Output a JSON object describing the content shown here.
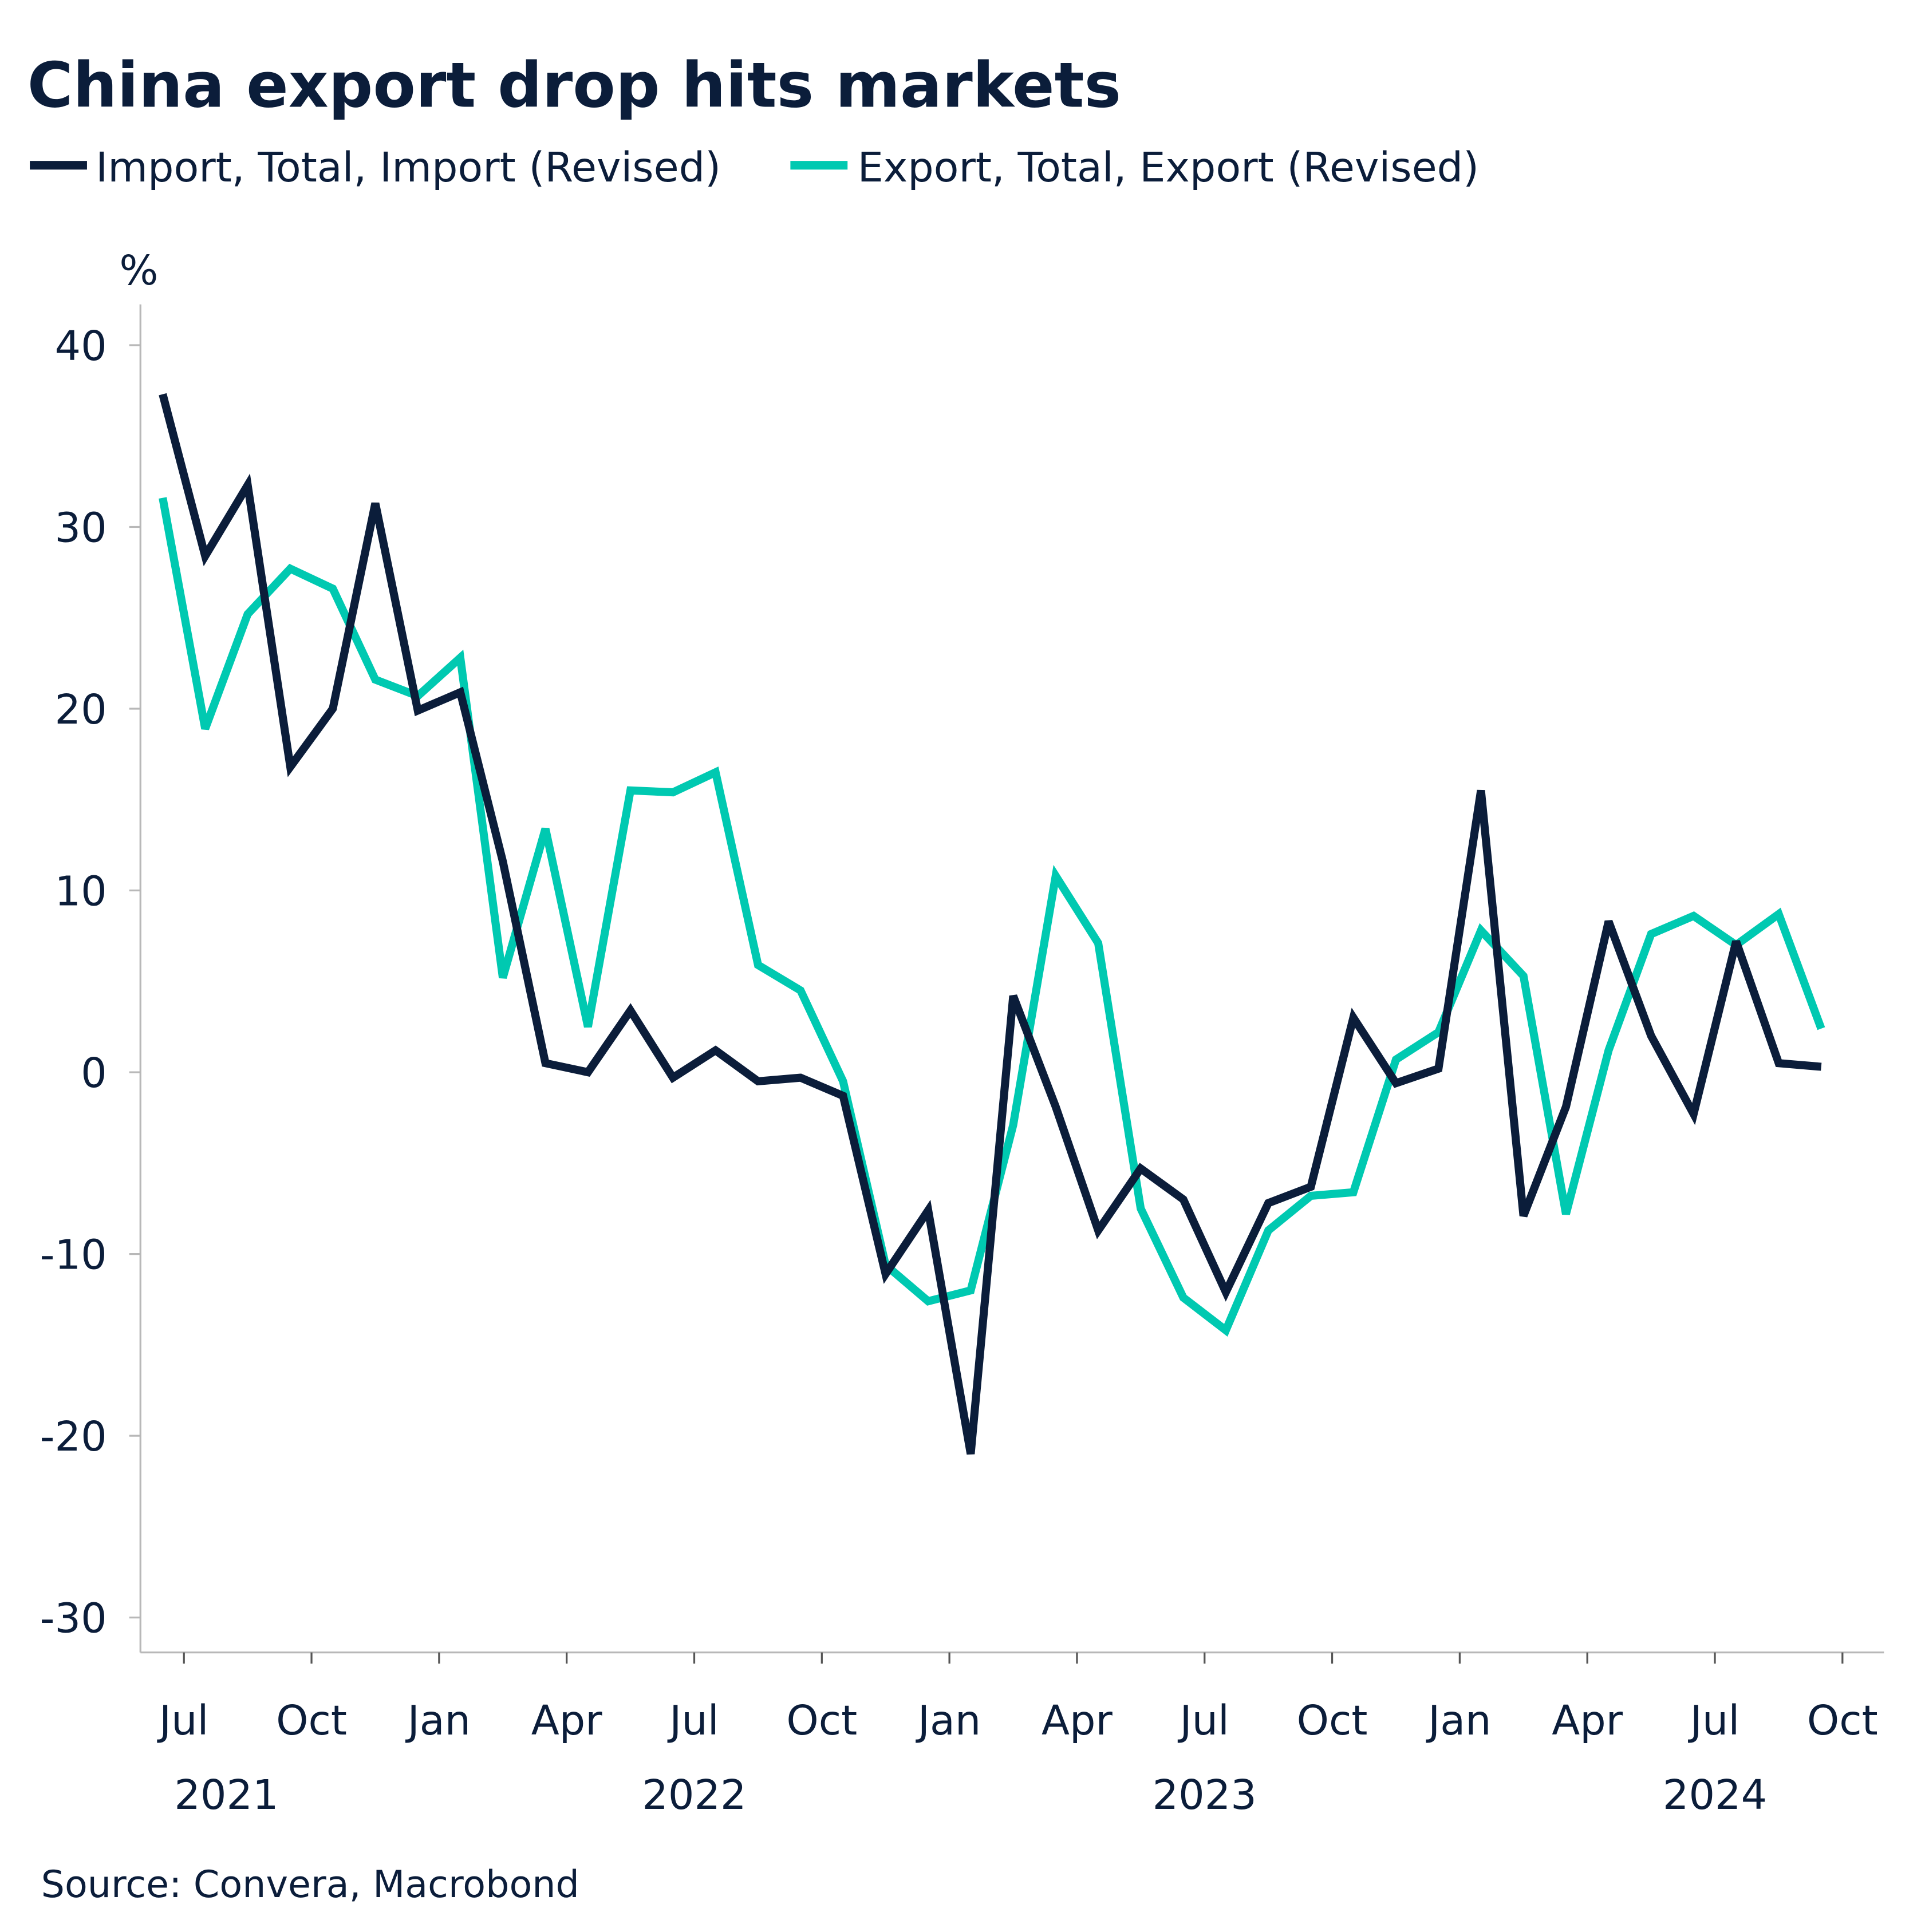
{
  "chart_data": {
    "type": "line",
    "title": "China export drop hits markets",
    "ylabel": "%",
    "ylim": [
      -30,
      40
    ],
    "yticks": [
      "40",
      "30",
      "20",
      "10",
      "0",
      "-10",
      "-20",
      "-30"
    ],
    "xticks": [
      {
        "date": "2021-07",
        "label": "Jul"
      },
      {
        "date": "2021-10",
        "label": "Oct"
      },
      {
        "date": "2022-01",
        "label": "Jan"
      },
      {
        "date": "2022-04",
        "label": "Apr"
      },
      {
        "date": "2022-07",
        "label": "Jul"
      },
      {
        "date": "2022-10",
        "label": "Oct"
      },
      {
        "date": "2023-01",
        "label": "Jan"
      },
      {
        "date": "2023-04",
        "label": "Apr"
      },
      {
        "date": "2023-07",
        "label": "Jul"
      },
      {
        "date": "2023-10",
        "label": "Oct"
      },
      {
        "date": "2024-01",
        "label": "Jan"
      },
      {
        "date": "2024-04",
        "label": "Apr"
      },
      {
        "date": "2024-07",
        "label": "Jul"
      },
      {
        "date": "2024-10",
        "label": "Oct"
      }
    ],
    "year_labels": [
      {
        "date": "2021-08",
        "label": "2021"
      },
      {
        "date": "2022-07",
        "label": "2022"
      },
      {
        "date": "2023-07",
        "label": "2023"
      },
      {
        "date": "2024-07",
        "label": "2024"
      }
    ],
    "x": [
      "2021-06",
      "2021-07",
      "2021-08",
      "2021-09",
      "2021-10",
      "2021-11",
      "2021-12",
      "2022-01",
      "2022-02",
      "2022-03",
      "2022-04",
      "2022-05",
      "2022-06",
      "2022-07",
      "2022-08",
      "2022-09",
      "2022-10",
      "2022-11",
      "2022-12",
      "2023-01",
      "2023-02",
      "2023-03",
      "2023-04",
      "2023-05",
      "2023-06",
      "2023-07",
      "2023-08",
      "2023-09",
      "2023-10",
      "2023-11",
      "2023-12",
      "2024-01",
      "2024-02",
      "2024-03",
      "2024-04",
      "2024-05",
      "2024-06",
      "2024-07",
      "2024-08",
      "2024-09"
    ],
    "series": [
      {
        "name": "Import, Total, Import (Revised)",
        "color": "#0b1d3a",
        "values": [
          37.3,
          28.4,
          32.3,
          16.8,
          20.0,
          31.3,
          19.9,
          20.9,
          11.6,
          0.5,
          0.0,
          3.4,
          -0.3,
          1.2,
          -0.5,
          -0.3,
          -1.3,
          -11.1,
          -7.6,
          -21.0,
          4.2,
          -1.9,
          -8.7,
          -5.3,
          -7.0,
          -12.1,
          -7.2,
          -6.3,
          3.0,
          -0.6,
          0.2,
          15.5,
          -7.9,
          -1.9,
          8.3,
          2.0,
          -2.3,
          7.2,
          0.5,
          0.3
        ]
      },
      {
        "name": "Export, Total, Export (Revised)",
        "color": "#00c9b1",
        "values": [
          31.6,
          18.9,
          25.2,
          27.7,
          26.6,
          21.6,
          20.7,
          22.8,
          5.2,
          13.4,
          2.5,
          15.5,
          15.4,
          16.5,
          5.9,
          4.5,
          -0.5,
          -10.6,
          -12.6,
          -12.0,
          -2.9,
          10.8,
          7.1,
          -7.5,
          -12.4,
          -14.2,
          -8.7,
          -6.8,
          -6.6,
          0.7,
          2.2,
          7.8,
          5.3,
          -7.8,
          1.2,
          7.6,
          8.6,
          7.0,
          8.7,
          2.4
        ]
      }
    ],
    "grid": false,
    "legend": "top-left",
    "source": "Source: Convera, Macrobond"
  }
}
